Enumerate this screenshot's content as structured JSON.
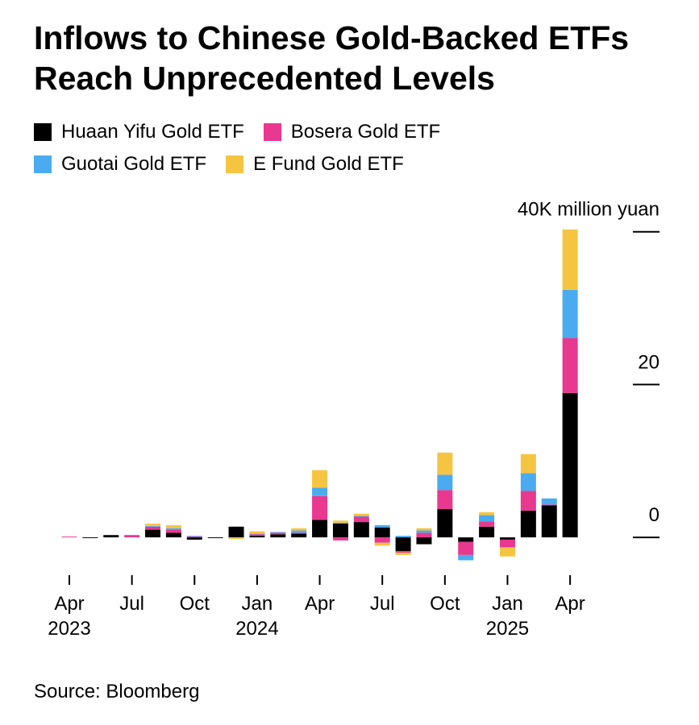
{
  "chart_data": {
    "type": "stacked_bar",
    "title": "Inflows to Chinese Gold-Backed ETFs Reach Unprecedented Levels",
    "source": "Source: Bloomberg",
    "categories": [
      "Apr\n2023",
      null,
      null,
      "Jul",
      null,
      null,
      "Oct",
      null,
      null,
      "Jan\n2024",
      null,
      null,
      "Apr",
      null,
      null,
      "Jul",
      null,
      null,
      "Oct",
      null,
      null,
      "Jan\n2025",
      null,
      null,
      "Apr"
    ],
    "series": [
      {
        "name": "Huaan Yifu Gold ETF",
        "color": "#000000",
        "values": [
          0,
          -0.1,
          0.3,
          0,
          1.0,
          0.6,
          -0.3,
          -0.1,
          1.4,
          0.2,
          0.4,
          0.5,
          2.3,
          1.8,
          2.0,
          1.3,
          -1.8,
          -0.9,
          3.7,
          -0.6,
          1.4,
          -0.3,
          3.5,
          4.2,
          18.9
        ]
      },
      {
        "name": "Bosera Gold ETF",
        "color": "#e8388f",
        "values": [
          0.1,
          0,
          0,
          0.3,
          0.4,
          0.4,
          0.1,
          0,
          0,
          0.2,
          0.2,
          0.1,
          3.1,
          -0.4,
          0.7,
          -0.7,
          -0.2,
          0.6,
          2.5,
          -1.7,
          0.7,
          -1.0,
          2.6,
          0.1,
          7.2
        ]
      },
      {
        "name": "Guotai Gold ETF",
        "color": "#4aabf0",
        "values": [
          0,
          0,
          0,
          0,
          0.1,
          0.2,
          0.1,
          0,
          0,
          0.1,
          0.1,
          0.3,
          1.1,
          0.1,
          0.1,
          0.3,
          0.2,
          0.3,
          2.0,
          -0.7,
          0.8,
          0,
          2.3,
          0.8,
          6.3
        ]
      },
      {
        "name": "E Fund Gold ETF",
        "color": "#f5c542",
        "values": [
          0,
          0,
          0,
          0,
          0.3,
          0.4,
          0,
          0,
          -0.2,
          0.3,
          0,
          0.3,
          2.3,
          0.3,
          0.3,
          -0.4,
          -0.3,
          0.3,
          2.9,
          0,
          0.4,
          -1.2,
          2.5,
          0,
          7.9
        ]
      }
    ],
    "ylim": [
      -4,
      40.5
    ],
    "yticks": [
      0,
      20,
      {
        "value": 40,
        "label": "40K million yuan"
      }
    ]
  }
}
